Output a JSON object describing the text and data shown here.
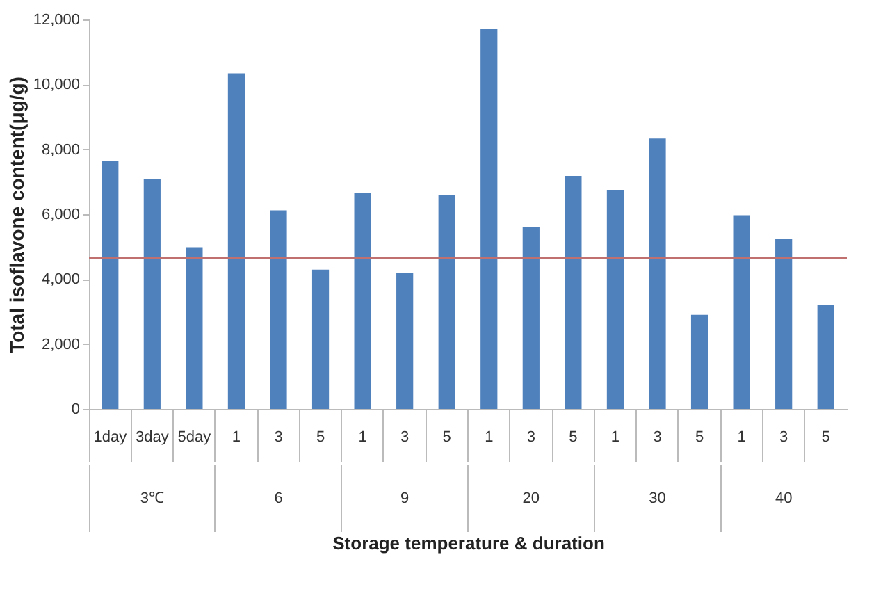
{
  "chart_data": {
    "type": "bar",
    "xlabel": "Storage temperature & duration",
    "ylabel": "Total isoflavone content(μg/g)",
    "categories": [
      "1day",
      "3day",
      "5day",
      "1",
      "3",
      "5",
      "1",
      "3",
      "5",
      "1",
      "3",
      "5",
      "1",
      "3",
      "5",
      "1",
      "3",
      "5"
    ],
    "values": [
      7650,
      7070,
      4980,
      10340,
      6120,
      4290,
      6660,
      4200,
      6600,
      11700,
      5600,
      7180,
      6750,
      8330,
      2900,
      5970,
      5240,
      3210
    ],
    "color": "#4f81bd",
    "ylim": [
      0,
      12000
    ],
    "yticks": [
      {
        "value": 0,
        "label": "0"
      },
      {
        "value": 2000,
        "label": "2,000"
      },
      {
        "value": 4000,
        "label": "4,000"
      },
      {
        "value": 6000,
        "label": "6,000"
      },
      {
        "value": 8000,
        "label": "8,000"
      },
      {
        "value": 10000,
        "label": "10,000"
      },
      {
        "value": 12000,
        "label": "12,000"
      }
    ],
    "ref_lines": [
      {
        "axis": "y",
        "value": 4660,
        "color": "#c0706e"
      }
    ],
    "annotations": [
      "3℃",
      "6",
      "9",
      "20",
      "30",
      "40"
    ]
  }
}
